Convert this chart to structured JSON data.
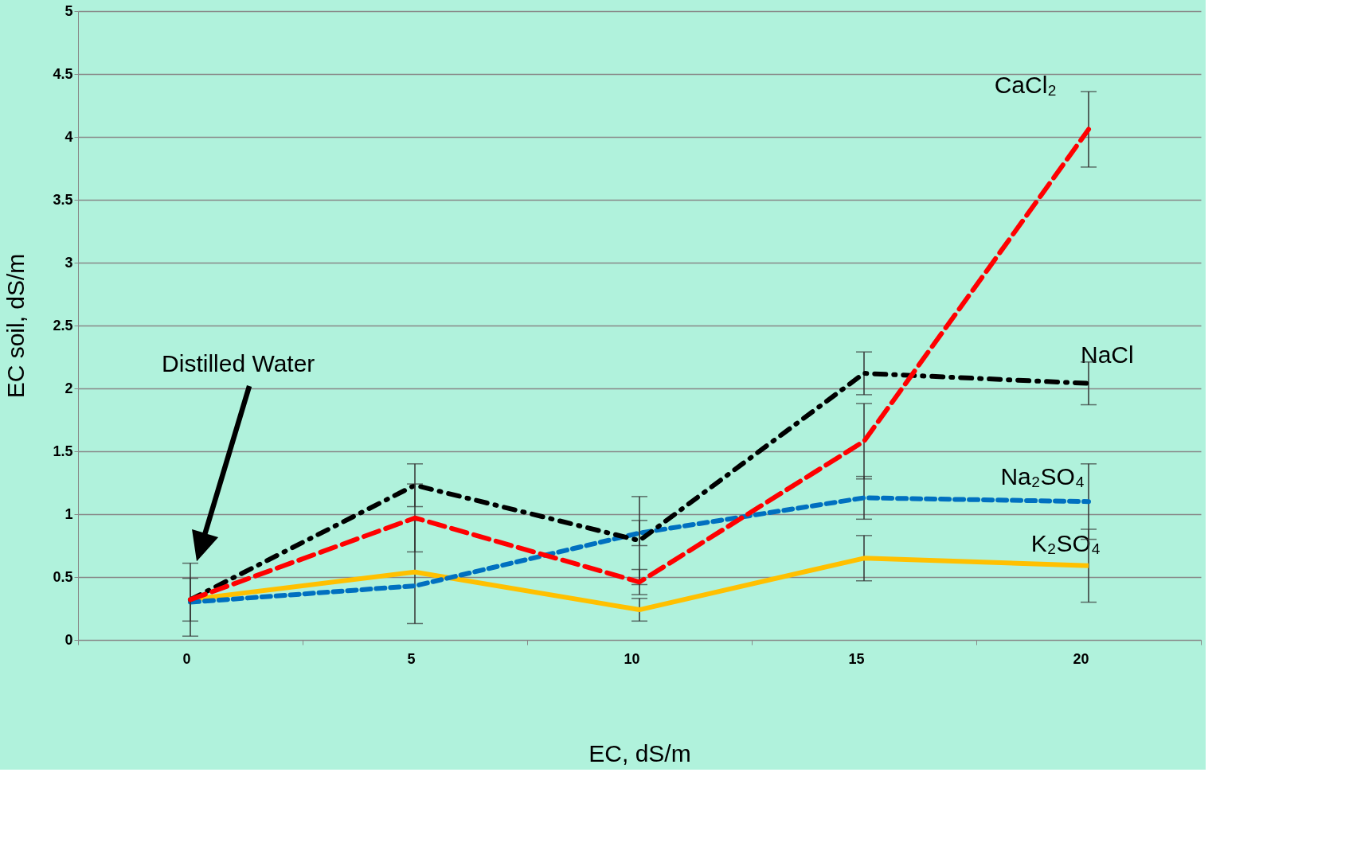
{
  "chart_data": {
    "type": "line",
    "xlabel": "EC, dS/m",
    "ylabel": "EC soil, dS/m",
    "categories": [
      "0",
      "5",
      "10",
      "15",
      "20"
    ],
    "series": [
      {
        "name": "CaCl₂",
        "color": "#ff0000",
        "line_style": "dashed",
        "values": [
          0.32,
          0.97,
          0.46,
          1.58,
          4.06
        ],
        "errors": [
          null,
          0.27,
          0.1,
          0.3,
          0.3
        ]
      },
      {
        "name": "NaCl",
        "color": "#000000",
        "line_style": "dashdot",
        "values": [
          0.32,
          1.23,
          0.79,
          2.12,
          2.04
        ],
        "errors": [
          0.29,
          0.17,
          0.35,
          0.17,
          0.17
        ]
      },
      {
        "name": "Na₂SO₄",
        "color": "#0070c0",
        "line_style": "dashed",
        "values": [
          0.3,
          0.43,
          0.85,
          1.13,
          1.1
        ],
        "errors": [
          null,
          null,
          0.1,
          0.17,
          0.3
        ]
      },
      {
        "name": "K₂SO₄",
        "color": "#ffc000",
        "line_style": "solid",
        "values": [
          0.32,
          0.54,
          0.24,
          0.65,
          0.59
        ],
        "errors": [
          0.17,
          0.41,
          0.09,
          0.18,
          0.29
        ]
      }
    ],
    "ylim": [
      0,
      5
    ],
    "yticks": [
      0,
      0.5,
      1,
      1.5,
      2,
      2.5,
      3,
      3.5,
      4,
      4.5,
      5
    ],
    "grid": "y",
    "annotations": [
      "Distilled Water"
    ]
  }
}
